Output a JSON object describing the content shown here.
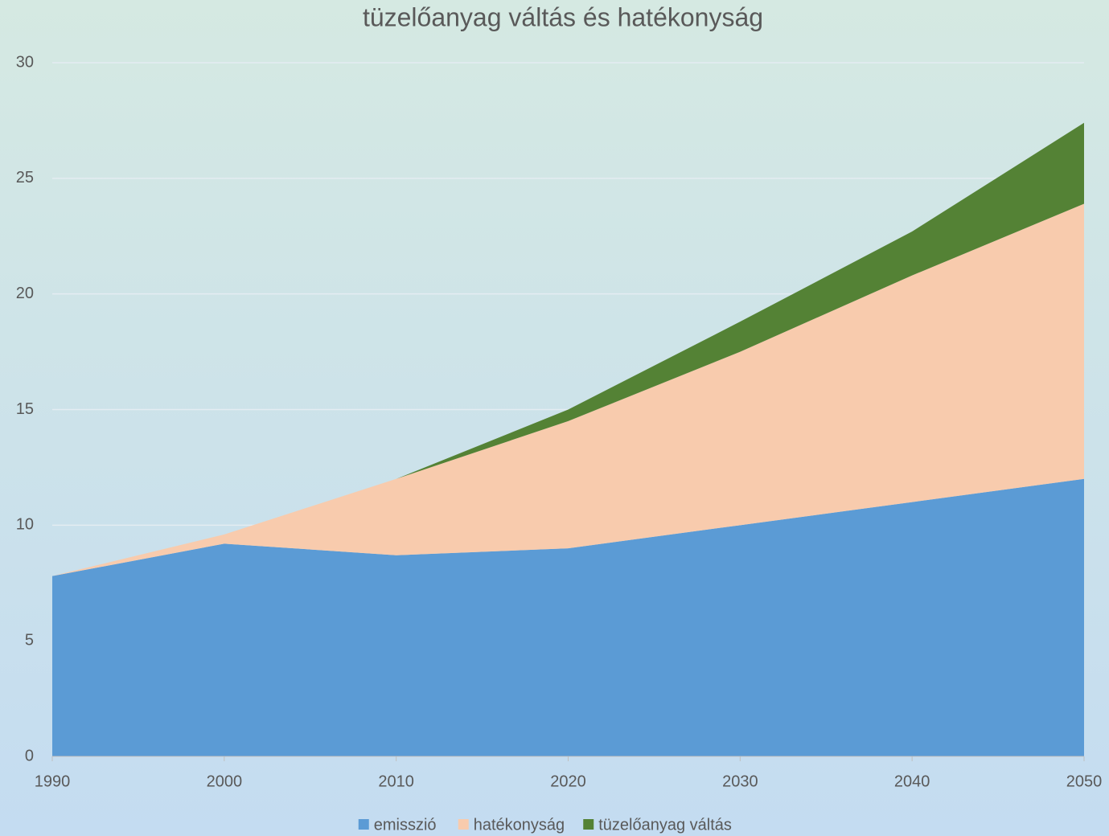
{
  "chart_data": {
    "type": "area",
    "stacked": true,
    "title": "tüzelőanyag váltás és hatékonyság",
    "x": [
      1990,
      2000,
      2010,
      2020,
      2030,
      2040,
      2050
    ],
    "xlim": [
      1990,
      2050
    ],
    "xticks": [
      1990,
      2000,
      2010,
      2020,
      2030,
      2040,
      2050
    ],
    "ylim": [
      0,
      30
    ],
    "yticks": [
      0,
      5,
      10,
      15,
      20,
      25,
      30
    ],
    "grid": true,
    "legend": "bottom",
    "series": [
      {
        "name": "emisszió",
        "color": "#5b9bd5",
        "values": [
          7.8,
          9.2,
          8.7,
          9.0,
          10,
          11,
          12
        ]
      },
      {
        "name": "hatékonyság",
        "color": "#f8cbad",
        "values": [
          0,
          0.4,
          3.3,
          5.5,
          7.5,
          9.8,
          11.9
        ]
      },
      {
        "name": "tüzelőanyag váltás",
        "color": "#548235",
        "values": [
          0,
          0,
          0,
          0.5,
          1.3,
          1.9,
          3.5
        ]
      }
    ]
  }
}
